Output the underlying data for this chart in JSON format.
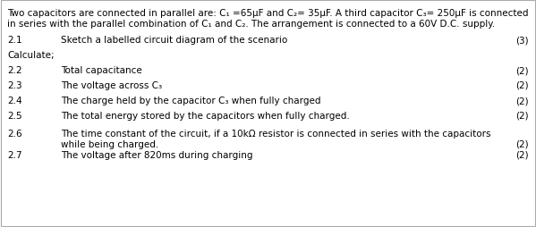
{
  "bg_color": "#ffffff",
  "border_color": "#cccccc",
  "intro_line1": "Two capacitors are connected in parallel are: C₁ =65μF and C₂= 35μF. A third capacitor C₃= 250μF is connected",
  "intro_line2": "in series with the parallel combination of C₁ and C₂. The arrangement is connected to a 60V D.C. supply.",
  "q21_num": "2.1",
  "q21_text": "Sketch a labelled circuit diagram of the scenario",
  "q21_marks": "(3)",
  "calculate_label": "Calculate;",
  "q22_num": "2.2",
  "q22_text": "Total capacitance",
  "q22_marks": "(2)",
  "q23_num": "2.3",
  "q23_text": "The voltage across C₃",
  "q23_marks": "(2)",
  "q24_num": "2.4",
  "q24_text": "The charge held by the capacitor C₃ when fully charged",
  "q24_marks": "(2)",
  "q25_num": "2.5",
  "q25_text": "The total energy stored by the capacitors when fully charged.",
  "q25_marks": "(2)",
  "q26_num": "2.6",
  "q26_line1": "The time constant of the circuit, if a 10kΩ resistor is connected in series with the capacitors",
  "q26_line2": "while being charged.",
  "q26_marks": "(2)",
  "q27_num": "2.7",
  "q27_text": "The voltage after 820ms during charging",
  "q27_marks": "(2)",
  "font_size": 7.5,
  "font_family": "DejaVu Sans"
}
